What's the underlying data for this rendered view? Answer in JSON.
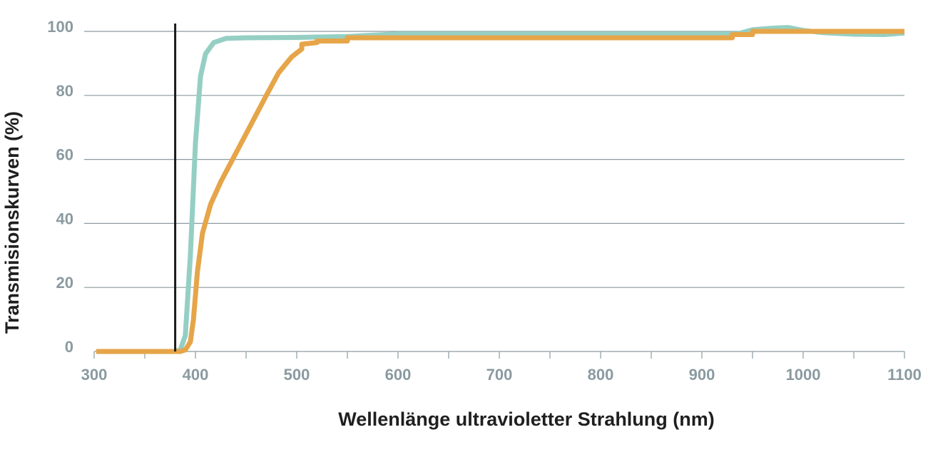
{
  "colors": {
    "teal": "#95cfc4",
    "orange": "#e6a549",
    "marker": "#1a1a1a",
    "grid": "#8c9ba1",
    "tick_text": "#8a9aa0",
    "title_text": "#1f1f1f"
  },
  "chart_data": {
    "type": "line",
    "xlabel": "Wellenlänge ultravioletter Strahlung (nm)",
    "ylabel": "Transmisionskurven (%)",
    "xlim": [
      300,
      1100
    ],
    "ylim": [
      0,
      100
    ],
    "x_ticks": [
      300,
      400,
      500,
      600,
      700,
      800,
      900,
      1000,
      1100
    ],
    "y_ticks": [
      0,
      20,
      40,
      60,
      80,
      100
    ],
    "grid": "horizontal",
    "reference_line_x": 380,
    "series": [
      {
        "color_key": "teal",
        "points": [
          [
            302,
            0
          ],
          [
            380,
            0
          ],
          [
            385,
            0.5
          ],
          [
            390,
            5
          ],
          [
            395,
            30
          ],
          [
            400,
            65
          ],
          [
            405,
            86
          ],
          [
            410,
            93
          ],
          [
            418,
            96.5
          ],
          [
            430,
            97.8
          ],
          [
            450,
            98
          ],
          [
            500,
            98.1
          ],
          [
            550,
            98.4
          ],
          [
            600,
            99.2
          ],
          [
            700,
            99.2
          ],
          [
            800,
            99.2
          ],
          [
            900,
            99.2
          ],
          [
            935,
            99.2
          ],
          [
            950,
            100.5
          ],
          [
            970,
            101
          ],
          [
            985,
            101.2
          ],
          [
            1000,
            100.3
          ],
          [
            1020,
            99.6
          ],
          [
            1050,
            99.1
          ],
          [
            1080,
            99
          ],
          [
            1100,
            99.5
          ]
        ]
      },
      {
        "color_key": "orange",
        "points": [
          [
            302,
            0
          ],
          [
            385,
            0
          ],
          [
            390,
            0.5
          ],
          [
            395,
            3
          ],
          [
            398,
            10
          ],
          [
            402,
            25
          ],
          [
            407,
            37
          ],
          [
            415,
            46
          ],
          [
            425,
            53
          ],
          [
            440,
            62
          ],
          [
            455,
            71
          ],
          [
            470,
            80
          ],
          [
            482,
            87
          ],
          [
            495,
            92
          ],
          [
            505,
            94.5
          ],
          [
            505,
            96
          ],
          [
            520,
            96.5
          ],
          [
            520,
            97
          ],
          [
            550,
            97
          ],
          [
            550,
            98
          ],
          [
            600,
            98
          ],
          [
            700,
            98
          ],
          [
            800,
            98
          ],
          [
            930,
            98
          ],
          [
            930,
            99
          ],
          [
            950,
            99
          ],
          [
            950,
            100
          ],
          [
            1100,
            100
          ]
        ]
      }
    ]
  }
}
